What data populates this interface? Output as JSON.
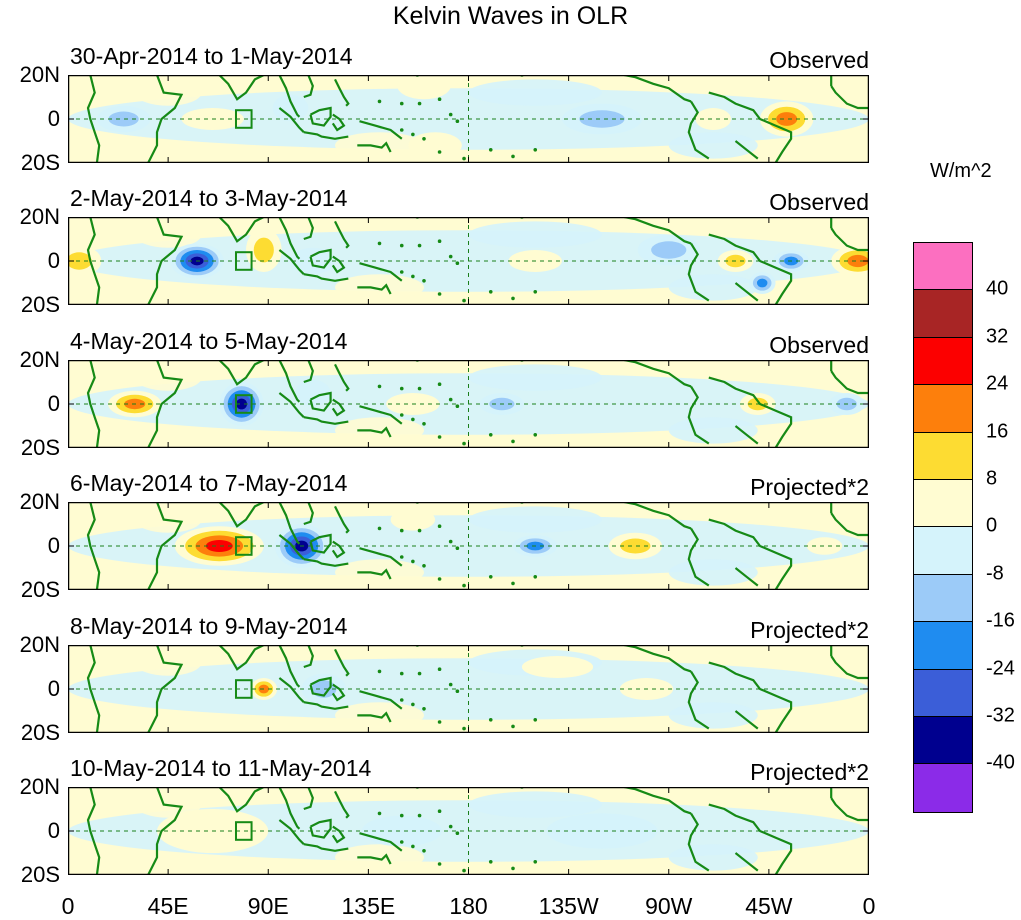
{
  "title": "Kelvin Waves in OLR",
  "colorbar": {
    "units": "W/m^2",
    "colors": [
      "#8b2be8",
      "#00008f",
      "#3b5ed8",
      "#1f8cf0",
      "#9ccbf8",
      "#d5f3fb",
      "#fffcd2",
      "#fddc32",
      "#fd7f0c",
      "#fc0000",
      "#a82525",
      "#fc6fc0"
    ],
    "ticks": [
      "-40",
      "-32",
      "-24",
      "-16",
      "-8",
      "0",
      "8",
      "16",
      "24",
      "32",
      "40"
    ]
  },
  "lat_labels": [
    "20N",
    "0",
    "20S"
  ],
  "lon_labels": [
    "0",
    "45E",
    "90E",
    "135E",
    "180",
    "135W",
    "90W",
    "45W",
    "0"
  ],
  "panels": [
    {
      "date_range": "30-Apr-2014 to 1-May-2014",
      "mode": "Observed",
      "anomalies": [
        {
          "lon": 25,
          "lat": 0,
          "value": -10,
          "rlon": 12,
          "rlat": 6
        },
        {
          "lon": 65,
          "lat": 0,
          "value": 6,
          "rlon": 14,
          "rlat": 5
        },
        {
          "lon": 100,
          "lat": 5,
          "value": -8,
          "rlon": 8,
          "rlat": 6
        },
        {
          "lon": 160,
          "lat": 15,
          "value": 6,
          "rlon": 12,
          "rlat": 6
        },
        {
          "lon": 165,
          "lat": -12,
          "value": 7,
          "rlon": 12,
          "rlat": 6
        },
        {
          "lon": 240,
          "lat": 0,
          "value": -12,
          "rlon": 18,
          "rlat": 7
        },
        {
          "lon": 290,
          "lat": 0,
          "value": 8,
          "rlon": 8,
          "rlat": 5
        },
        {
          "lon": 323,
          "lat": 0,
          "value": 18,
          "rlon": 12,
          "rlat": 8
        }
      ]
    },
    {
      "date_range": "2-May-2014 to 3-May-2014",
      "mode": "Observed",
      "anomalies": [
        {
          "lon": 5,
          "lat": 0,
          "value": 15,
          "rlon": 10,
          "rlat": 7
        },
        {
          "lon": 58,
          "lat": 0,
          "value": -34,
          "rlon": 12,
          "rlat": 8
        },
        {
          "lon": 88,
          "lat": 5,
          "value": 9,
          "rlon": 8,
          "rlat": 10
        },
        {
          "lon": 110,
          "lat": 0,
          "value": -8,
          "rlon": 10,
          "rlat": 6
        },
        {
          "lon": 210,
          "lat": 0,
          "value": 7,
          "rlon": 12,
          "rlat": 5
        },
        {
          "lon": 270,
          "lat": 5,
          "value": -10,
          "rlon": 14,
          "rlat": 7
        },
        {
          "lon": 300,
          "lat": 0,
          "value": 12,
          "rlon": 8,
          "rlat": 5
        },
        {
          "lon": 312,
          "lat": -10,
          "value": -22,
          "rlon": 6,
          "rlat": 5
        },
        {
          "lon": 325,
          "lat": 0,
          "value": -24,
          "rlon": 8,
          "rlat": 5
        },
        {
          "lon": 355,
          "lat": 0,
          "value": 20,
          "rlon": 12,
          "rlat": 7
        }
      ]
    },
    {
      "date_range": "4-May-2014 to 5-May-2014",
      "mode": "Observed",
      "anomalies": [
        {
          "lon": 30,
          "lat": 0,
          "value": 18,
          "rlon": 12,
          "rlat": 6
        },
        {
          "lon": 78,
          "lat": 0,
          "value": -36,
          "rlon": 10,
          "rlat": 10
        },
        {
          "lon": 110,
          "lat": 5,
          "value": -8,
          "rlon": 8,
          "rlat": 6
        },
        {
          "lon": 155,
          "lat": 0,
          "value": 6,
          "rlon": 12,
          "rlat": 5
        },
        {
          "lon": 195,
          "lat": 0,
          "value": -10,
          "rlon": 10,
          "rlat": 5
        },
        {
          "lon": 310,
          "lat": 0,
          "value": 9,
          "rlon": 8,
          "rlat": 5
        },
        {
          "lon": 350,
          "lat": 0,
          "value": -12,
          "rlon": 8,
          "rlat": 5
        }
      ]
    },
    {
      "date_range": "6-May-2014 to 7-May-2014",
      "mode": "Projected*2",
      "anomalies": [
        {
          "lon": 68,
          "lat": 0,
          "value": 30,
          "rlon": 20,
          "rlat": 9
        },
        {
          "lon": 105,
          "lat": 0,
          "value": -40,
          "rlon": 12,
          "rlat": 10
        },
        {
          "lon": 155,
          "lat": 12,
          "value": 7,
          "rlon": 10,
          "rlat": 5
        },
        {
          "lon": 210,
          "lat": 0,
          "value": -22,
          "rlon": 10,
          "rlat": 5
        },
        {
          "lon": 255,
          "lat": 0,
          "value": 10,
          "rlon": 12,
          "rlat": 6
        },
        {
          "lon": 340,
          "lat": 0,
          "value": 8,
          "rlon": 8,
          "rlat": 4
        }
      ]
    },
    {
      "date_range": "8-May-2014 to 9-May-2014",
      "mode": "Projected*2",
      "anomalies": [
        {
          "lon": 88,
          "lat": 0,
          "value": 22,
          "rlon": 6,
          "rlat": 5
        },
        {
          "lon": 115,
          "lat": 0,
          "value": -10,
          "rlon": 10,
          "rlat": 7
        },
        {
          "lon": 220,
          "lat": 10,
          "value": 6,
          "rlon": 16,
          "rlat": 5
        },
        {
          "lon": 260,
          "lat": 0,
          "value": 6,
          "rlon": 12,
          "rlat": 5
        }
      ]
    },
    {
      "date_range": "10-May-2014 to 11-May-2014",
      "mode": "Projected*2",
      "anomalies": [
        {
          "lon": 65,
          "lat": 0,
          "value": 6,
          "rlon": 25,
          "rlat": 10
        },
        {
          "lon": 150,
          "lat": 0,
          "value": -6,
          "rlon": 18,
          "rlat": 7
        },
        {
          "lon": 240,
          "lat": 0,
          "value": -5,
          "rlon": 25,
          "rlat": 8
        }
      ]
    }
  ]
}
